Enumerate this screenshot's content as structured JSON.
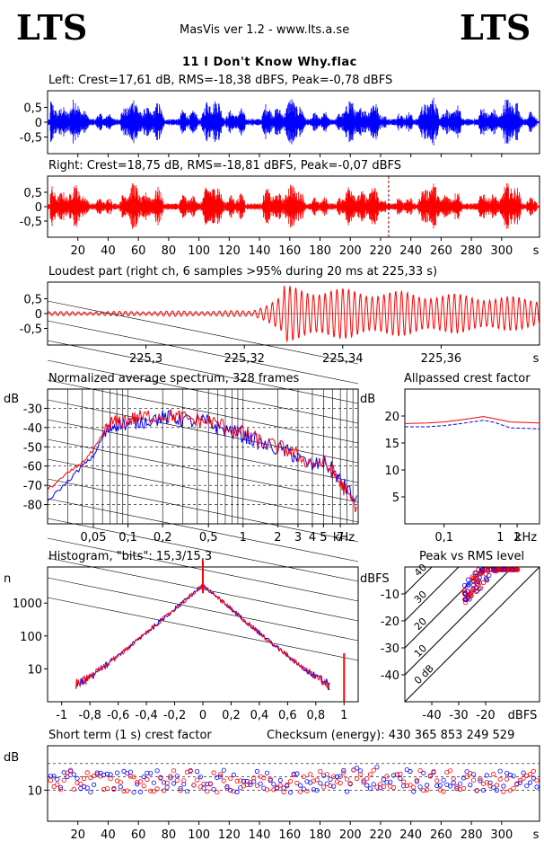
{
  "header": {
    "logo_left": "LTS",
    "logo_right": "LTS",
    "app_title": "MasVis ver 1.2 - www.lts.a.se",
    "file_name": "11 I Don't Know Why.flac"
  },
  "colors": {
    "left": "#0000ff",
    "right": "#ff0000",
    "axis": "#000000"
  },
  "panels": {
    "left_wave": {
      "title": "Left: Crest=17,61 dB, RMS=-18,38 dBFS, Peak=-0,78 dBFS"
    },
    "right_wave": {
      "title": "Right: Crest=18,75 dB, RMS=-18,81 dBFS, Peak=-0,07 dBFS"
    },
    "loudest": {
      "title": "Loudest part (right ch, 6 samples >95% during 20 ms at 225,33 s)"
    },
    "spectrum": {
      "title": "Normalized average spectrum, 328 frames",
      "ylabel": "dB",
      "xunit": "kHz"
    },
    "allpass": {
      "title": "Allpassed crest factor",
      "ylabel": "dB",
      "xunit": "kHz"
    },
    "histogram": {
      "title": "Histogram, \"bits\": 15,3/15,3",
      "ylabel": "n"
    },
    "peak_rms": {
      "title": "Peak vs RMS level",
      "ylabel": "dBFS",
      "xunit": "dBFS"
    },
    "short_crest": {
      "title": "Short term (1 s) crest factor",
      "ylabel": "dB",
      "checksum": "Checksum (energy):   430 365 853 249 529"
    }
  },
  "chart_data": [
    {
      "id": "left_wave",
      "type": "line",
      "title": "Left: Crest=17,61 dB, RMS=-18,38 dBFS, Peak=-0,78 dBFS",
      "xlim": [
        0,
        325
      ],
      "ylim": [
        -1,
        1
      ],
      "yticks": [
        "0,5",
        "0",
        "-0,5"
      ],
      "series": [
        {
          "name": "Left",
          "color": "#0000ff"
        }
      ]
    },
    {
      "id": "right_wave",
      "type": "line",
      "title": "Right: Crest=18,75 dB, RMS=-18,81 dBFS, Peak=-0,07 dBFS",
      "xlim": [
        0,
        325
      ],
      "ylim": [
        -1,
        1
      ],
      "yticks": [
        "0,5",
        "0",
        "-0,5"
      ],
      "xticks": [
        "20",
        "40",
        "60",
        "80",
        "100",
        "120",
        "140",
        "160",
        "180",
        "200",
        "220",
        "240",
        "260",
        "280",
        "300"
      ],
      "xunit": "s",
      "marker_x": 225.33,
      "series": [
        {
          "name": "Right",
          "color": "#ff0000"
        }
      ]
    },
    {
      "id": "loudest",
      "type": "line",
      "title": "Loudest part (right ch, 6 samples >95% during 20 ms at 225,33 s)",
      "xlim": [
        225.28,
        225.38
      ],
      "ylim": [
        -1,
        1
      ],
      "yticks": [
        "0,5",
        "0",
        "-0,5"
      ],
      "xticks": [
        "225,3",
        "225,32",
        "225,34",
        "225,36"
      ],
      "xunit": "s"
    },
    {
      "id": "spectrum",
      "type": "line",
      "title": "Normalized average spectrum, 328 frames",
      "ylabel": "dB",
      "xunit": "kHz",
      "yticks": [
        "-30",
        "-40",
        "-50",
        "-60",
        "-70",
        "-80"
      ],
      "xticks": [
        "0,05",
        "0,1",
        "0,2",
        "0,5",
        "1",
        "2",
        "3",
        "4",
        "5",
        "7"
      ],
      "x_khz": [
        0.02,
        0.03,
        0.04,
        0.05,
        0.06,
        0.07,
        0.08,
        0.1,
        0.12,
        0.15,
        0.2,
        0.25,
        0.3,
        0.4,
        0.5,
        0.6,
        0.8,
        1,
        1.2,
        1.5,
        2,
        2.5,
        3,
        4,
        5,
        6,
        7,
        8,
        10
      ],
      "series": [
        {
          "name": "Left",
          "color": "#0000ff",
          "values": [
            -78,
            -68,
            -60,
            -55,
            -45,
            -40,
            -38,
            -38,
            -37,
            -36,
            -35,
            -35,
            -36,
            -37,
            -37,
            -40,
            -42,
            -44,
            -46,
            -49,
            -51,
            -53,
            -56,
            -60,
            -58,
            -62,
            -68,
            -72,
            -80
          ]
        },
        {
          "name": "Right",
          "color": "#ff0000",
          "values": [
            -72,
            -64,
            -58,
            -52,
            -44,
            -38,
            -37,
            -36,
            -35,
            -34,
            -34,
            -34,
            -35,
            -36,
            -37,
            -38,
            -41,
            -43,
            -45,
            -48,
            -50,
            -52,
            -55,
            -59,
            -58,
            -63,
            -69,
            -74,
            -82
          ]
        }
      ]
    },
    {
      "id": "allpass",
      "type": "line",
      "title": "Allpassed crest factor",
      "ylabel": "dB",
      "xunit": "kHz",
      "yticks": [
        "20",
        "15",
        "10",
        "5"
      ],
      "xticks": [
        "0,1",
        "1",
        "2"
      ],
      "series": [
        {
          "name": "Left",
          "color": "#0000ff",
          "values": [
            18.0,
            18.0,
            18.2,
            18.6,
            19.2,
            18.8,
            17.8,
            17.7,
            17.6
          ]
        },
        {
          "name": "Right",
          "color": "#ff0000",
          "values": [
            18.6,
            18.7,
            18.9,
            19.3,
            19.9,
            19.5,
            18.9,
            18.8,
            18.7
          ]
        }
      ]
    },
    {
      "id": "histogram",
      "type": "line",
      "title": "Histogram, \"bits\": 15,3/15,3",
      "ylabel": "n",
      "yticks": [
        "1000",
        "100",
        "10"
      ],
      "xticks": [
        "-1",
        "-0,8",
        "-0,6",
        "-0,4",
        "-0,2",
        "0",
        "0,2",
        "0,4",
        "0,6",
        "0,8",
        "1"
      ]
    },
    {
      "id": "peak_rms",
      "type": "scatter",
      "title": "Peak vs RMS level",
      "ylabel": "dBFS",
      "xunit": "dBFS",
      "yticks": [
        "-10",
        "-20",
        "-30",
        "-40"
      ],
      "xticks": [
        "-40",
        "-30",
        "-20"
      ],
      "diag_labels": [
        "40",
        "30",
        "20",
        "10",
        "0 dB"
      ]
    },
    {
      "id": "short_crest",
      "type": "scatter",
      "title": "Short term (1 s) crest factor",
      "ylabel": "dB",
      "yticks": [
        "10"
      ],
      "xticks": [
        "20",
        "40",
        "60",
        "80",
        "100",
        "120",
        "140",
        "160",
        "180",
        "200",
        "220",
        "240",
        "260",
        "280",
        "300"
      ],
      "xunit": "s"
    }
  ]
}
